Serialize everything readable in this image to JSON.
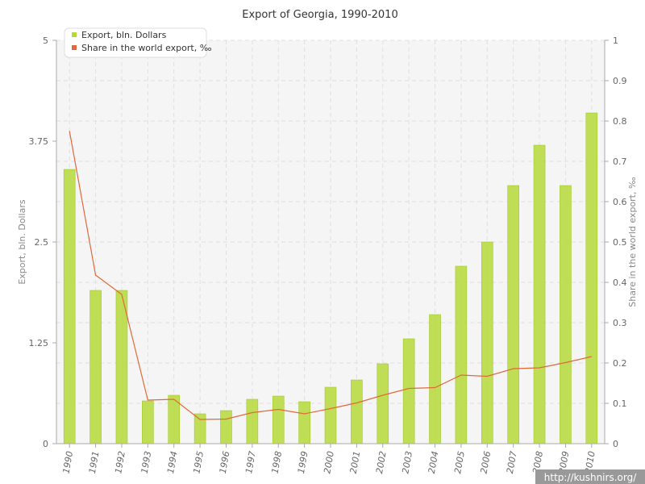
{
  "chart_data": {
    "type": "bar",
    "title": "Export of Georgia, 1990-2010",
    "xlabel": "",
    "ylabel": "Export, bln. Dollars",
    "y2label": "Share in the world export, ‰",
    "categories": [
      "1990",
      "1991",
      "1992",
      "1993",
      "1994",
      "1995",
      "1996",
      "1997",
      "1998",
      "1999",
      "2000",
      "2001",
      "2002",
      "2003",
      "2004",
      "2005",
      "2006",
      "2007",
      "2008",
      "2009",
      "2010"
    ],
    "ylim": [
      0,
      5
    ],
    "y_ticks": [
      "0",
      "1.25",
      "2.5",
      "3.75",
      "5"
    ],
    "y2lim": [
      0,
      1
    ],
    "y2_ticks": [
      "0",
      "0.1",
      "0.2",
      "0.3",
      "0.4",
      "0.5",
      "0.6",
      "0.7",
      "0.8",
      "0.9",
      "1"
    ],
    "grid": true,
    "legend_position": "top-left",
    "series": [
      {
        "name": "Export, bln. Dollars",
        "type": "bar",
        "axis": "left",
        "color": "#b5d93a",
        "values": [
          3.4,
          1.9,
          1.9,
          0.53,
          0.6,
          0.37,
          0.41,
          0.55,
          0.59,
          0.52,
          0.7,
          0.79,
          0.99,
          1.3,
          1.6,
          2.2,
          2.5,
          3.2,
          3.7,
          3.2,
          4.1
        ]
      },
      {
        "name": "Share in the world export, ‰",
        "type": "line",
        "axis": "right",
        "color": "#e0693a",
        "values": [
          0.775,
          0.418,
          0.37,
          0.108,
          0.11,
          0.06,
          0.061,
          0.077,
          0.085,
          0.074,
          0.087,
          0.101,
          0.12,
          0.137,
          0.139,
          0.17,
          0.167,
          0.186,
          0.188,
          0.201,
          0.216
        ]
      }
    ]
  },
  "watermark": {
    "text": "http://kushnirs.org/",
    "background": "#999999"
  },
  "colors": {
    "axis": "#aaaaaa",
    "grid": "#e0e0e0",
    "plot_background": "#f5f5f5"
  }
}
